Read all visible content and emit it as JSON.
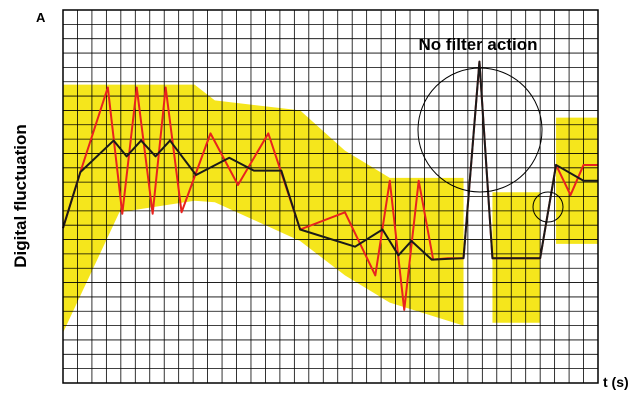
{
  "chart_data": {
    "type": "line",
    "panel_label": "A",
    "annotation": "No filter action",
    "ylabel": "Digital fluctuation",
    "xlabel": "t (s)",
    "xlim": [
      0,
      37
    ],
    "ylim": [
      0,
      26
    ],
    "xticks": [
      0,
      1,
      2,
      3,
      4,
      5,
      6,
      7,
      8,
      9,
      10,
      11,
      12,
      13,
      14,
      15,
      16,
      17,
      18,
      19,
      20,
      21,
      22,
      23,
      24,
      25,
      26,
      27,
      28,
      29,
      30,
      31,
      32,
      33,
      34,
      35,
      36,
      37
    ],
    "yticks": [
      0,
      1,
      2,
      3,
      4,
      5,
      6,
      7,
      8,
      9,
      10,
      11,
      12,
      13,
      14,
      15,
      16,
      17,
      18,
      19,
      20,
      21,
      22,
      23,
      24,
      25,
      26
    ],
    "grid": true,
    "band": {
      "color": "#f5e61c",
      "x": [
        0,
        3.9,
        9.1,
        10.5,
        16.4,
        19.5,
        22.6,
        27.7,
        28.7,
        29.7,
        33,
        33.5,
        34.1,
        37
      ],
      "upper": [
        20.8,
        20.8,
        20.8,
        19.7,
        19.0,
        16.2,
        14.3,
        14.3,
        null,
        13.3,
        13.3,
        null,
        18.5,
        18.5
      ],
      "lower": [
        3.5,
        11.9,
        12.7,
        12.6,
        9.9,
        7.5,
        5.6,
        4.0,
        null,
        4.2,
        4.2,
        null,
        9.7,
        9.7
      ]
    },
    "series": [
      {
        "color": "#e8231e",
        "x": [
          0,
          1.2,
          3.1,
          4.1,
          5.1,
          6.2,
          7.1,
          8.2,
          10.2,
          12.1,
          14.2,
          16.4,
          19.5,
          21.6,
          22.6,
          23.6,
          24.6,
          25.6,
          26.6,
          27.7,
          28.8,
          29.7,
          33.0,
          34.1,
          35.1,
          36.0,
          37
        ],
        "values": [
          10.8,
          14.7,
          20.6,
          11.8,
          20.6,
          11.8,
          20.6,
          11.9,
          17.4,
          13.8,
          17.4,
          10.7,
          11.9,
          7.5,
          14.1,
          5.1,
          14.1,
          8.6,
          8.7,
          8.7,
          22.4,
          8.7,
          8.7,
          15.2,
          13.1,
          15.2,
          15.2
        ]
      },
      {
        "color": "#1a1a1a",
        "x": [
          0,
          1.2,
          3.5,
          4.4,
          5.4,
          6.4,
          7.4,
          9.2,
          11.5,
          13.2,
          15.1,
          16.4,
          20.2,
          22.1,
          23.2,
          24.1,
          25.5,
          27.7,
          28.8,
          29.7,
          33.0,
          34.1,
          36.0,
          37
        ],
        "values": [
          10.8,
          14.7,
          16.9,
          15.8,
          16.9,
          15.8,
          16.9,
          14.5,
          15.7,
          14.8,
          14.8,
          10.7,
          9.5,
          10.7,
          8.9,
          9.9,
          8.6,
          8.7,
          22.4,
          8.7,
          8.7,
          15.2,
          14.1,
          14.1
        ]
      }
    ]
  }
}
